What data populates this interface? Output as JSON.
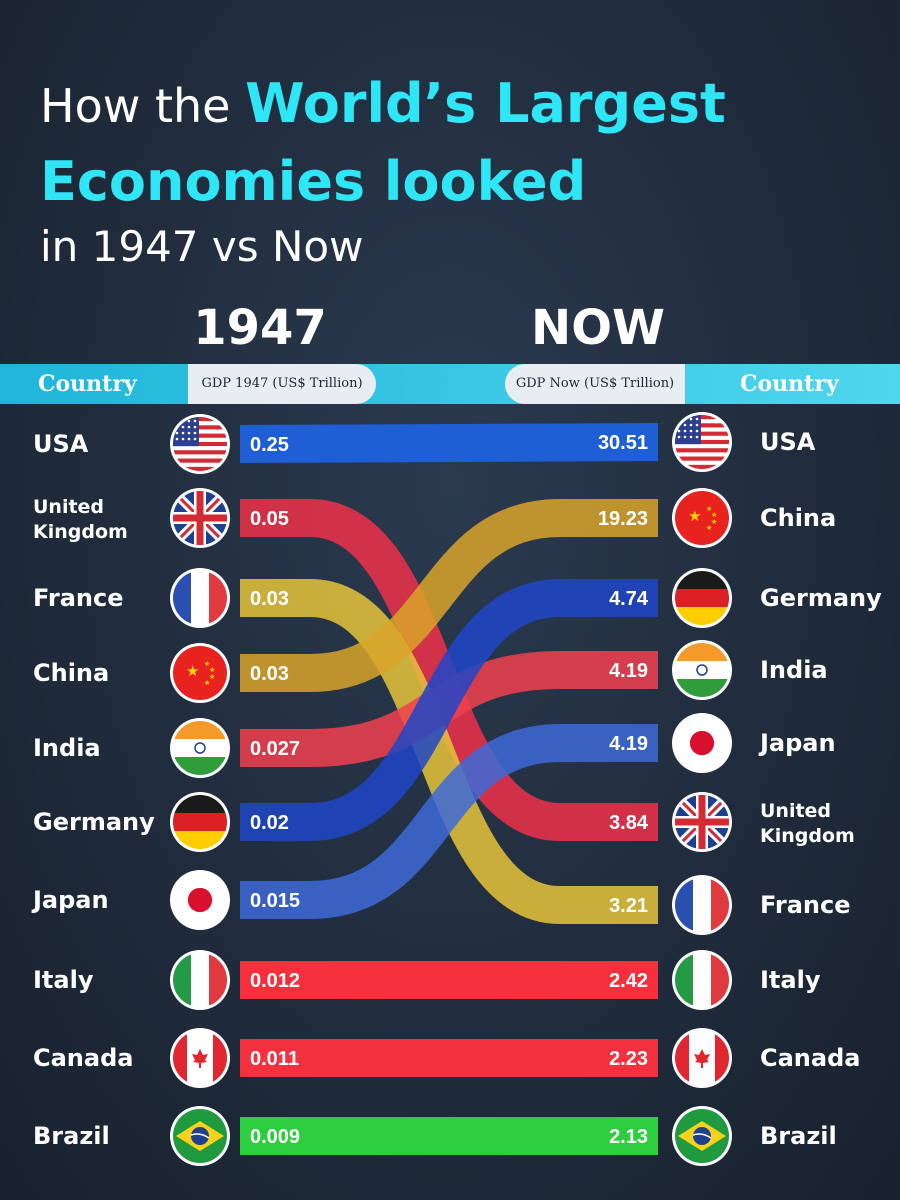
{
  "title": {
    "prefix": "How the ",
    "highlight1": "World’s Largest",
    "highlight2": "Economies looked",
    "suffix": "in 1947 vs Now"
  },
  "columns": {
    "left_heading": "1947",
    "right_heading": "NOW",
    "country_label": "Country",
    "left_value_label": "GDP 1947 (US$ Trillion)",
    "right_value_label": "GDP Now (US$ Trillion)"
  },
  "colors": {
    "accent": "#2ee6f5",
    "band": "#29c3e3"
  },
  "chart_data": {
    "type": "bump",
    "unit": "US$ Trillion",
    "left_ranking": [
      {
        "country": "USA",
        "value": "0.25"
      },
      {
        "country": "United Kingdom",
        "value": "0.05"
      },
      {
        "country": "France",
        "value": "0.03"
      },
      {
        "country": "China",
        "value": "0.03"
      },
      {
        "country": "India",
        "value": "0.027"
      },
      {
        "country": "Germany",
        "value": "0.02"
      },
      {
        "country": "Japan",
        "value": "0.015"
      },
      {
        "country": "Italy",
        "value": "0.012"
      },
      {
        "country": "Canada",
        "value": "0.011"
      },
      {
        "country": "Brazil",
        "value": "0.009"
      }
    ],
    "right_ranking": [
      {
        "country": "USA",
        "value": "30.51"
      },
      {
        "country": "China",
        "value": "19.23"
      },
      {
        "country": "Germany",
        "value": "4.74"
      },
      {
        "country": "India",
        "value": "4.19"
      },
      {
        "country": "Japan",
        "value": "4.19"
      },
      {
        "country": "United Kingdom",
        "value": "3.84"
      },
      {
        "country": "France",
        "value": "3.21"
      },
      {
        "country": "Italy",
        "value": "2.42"
      },
      {
        "country": "Canada",
        "value": "2.23"
      },
      {
        "country": "Brazil",
        "value": "2.13"
      }
    ],
    "series_colors": {
      "USA": "#1f5fd6",
      "United Kingdom": "#f0304a",
      "France": "#e8c43a",
      "China": "#d9a42a",
      "India": "#f2404e",
      "Germany": "#1f46c8",
      "Japan": "#3d6ad8",
      "Italy": "#f5303c",
      "Canada": "#f2303e",
      "Brazil": "#2ccd3f"
    },
    "flags": {
      "USA": "usa-flag",
      "United Kingdom": "uk-flag",
      "France": "france-flag",
      "China": "china-flag",
      "India": "india-flag",
      "Germany": "germany-flag",
      "Japan": "japan-flag",
      "Italy": "italy-flag",
      "Canada": "canada-flag",
      "Brazil": "brazil-flag"
    }
  }
}
